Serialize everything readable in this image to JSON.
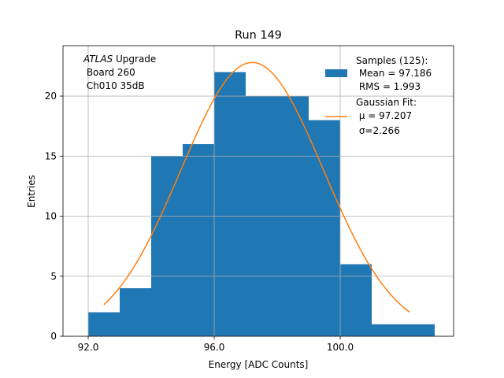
{
  "chart_data": {
    "type": "bar",
    "title": "Run 149",
    "xlabel": "Energy [ADC Counts]",
    "ylabel": "Entries",
    "xlim": [
      91.2,
      103.6
    ],
    "ylim": [
      0,
      24.2
    ],
    "xticks": [
      92,
      96,
      100
    ],
    "xtick_labels": [
      "92.0",
      "96.0",
      "100.0"
    ],
    "yticks": [
      0,
      5,
      10,
      15,
      20
    ],
    "yticks_labels": [
      "0",
      "5",
      "10",
      "15",
      "20"
    ],
    "grid": true,
    "bins": [
      {
        "x0": 92,
        "x1": 93,
        "count": 2
      },
      {
        "x0": 93,
        "x1": 94,
        "count": 4
      },
      {
        "x0": 94,
        "x1": 95,
        "count": 15
      },
      {
        "x0": 95,
        "x1": 96,
        "count": 16
      },
      {
        "x0": 96,
        "x1": 97,
        "count": 22
      },
      {
        "x0": 97,
        "x1": 98,
        "count": 20
      },
      {
        "x0": 98,
        "x1": 99,
        "count": 20
      },
      {
        "x0": 99,
        "x1": 100,
        "count": 18
      },
      {
        "x0": 100,
        "x1": 101,
        "count": 6
      },
      {
        "x0": 101,
        "x1": 102,
        "count": 1
      },
      {
        "x0": 102,
        "x1": 103,
        "count": 1
      }
    ],
    "fit": {
      "type": "gaussian",
      "mu": 97.207,
      "sigma": 2.266,
      "amplitude": 22.8,
      "x_range": [
        92.5,
        102.2
      ]
    },
    "colors": {
      "histogram": "#1f77b4",
      "fit": "#ff7f0e",
      "grid": "#b0b0b0"
    },
    "annotation": {
      "italic": "ATLAS",
      "line1_rest": " Upgrade",
      "line2": " Board 260",
      "line3": " Ch010 35dB"
    },
    "legend": {
      "position": "top-right",
      "samples": {
        "title": "Samples (125):",
        "mean": " Mean = 97.186",
        "rms": " RMS = 1.993"
      },
      "fit": {
        "title": "Gaussian Fit:",
        "mu": " μ = 97.207",
        "sigma": " σ=2.266"
      }
    }
  }
}
